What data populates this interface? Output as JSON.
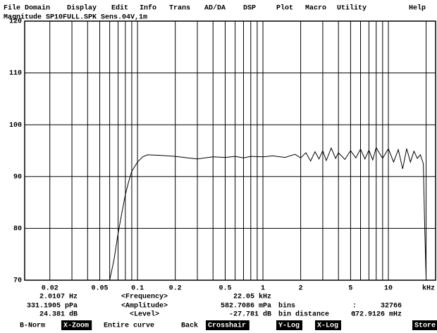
{
  "menu": [
    "File",
    "Domain",
    "Display",
    "Edit",
    "Info",
    "Trans",
    "AD/DA",
    "DSP",
    "Plot",
    "Macro",
    "Utility",
    "Help"
  ],
  "chart_data": {
    "type": "line",
    "title": "Magnitude SP10FULL.SPK Sens.04V,1m",
    "x_unit": "kHz",
    "color": "#000000",
    "grid": true,
    "xscale": "log",
    "xlim": [
      0.0126,
      23.8
    ],
    "xticks": [
      0.02,
      0.05,
      0.1,
      0.2,
      0.5,
      1,
      2,
      5,
      10
    ],
    "minor_xticks": [
      0.03,
      0.04,
      0.06,
      0.07,
      0.08,
      0.09,
      0.3,
      0.4,
      0.6,
      0.7,
      0.8,
      0.9,
      3,
      4,
      6,
      7,
      8,
      9,
      20
    ],
    "ylim": [
      70,
      120
    ],
    "yticks": [
      70,
      80,
      90,
      100,
      110,
      120
    ],
    "x": [
      0.06,
      0.065,
      0.07,
      0.075,
      0.08,
      0.085,
      0.09,
      0.1,
      0.11,
      0.12,
      0.15,
      0.2,
      0.25,
      0.3,
      0.4,
      0.5,
      0.6,
      0.7,
      0.8,
      1,
      1.2,
      1.5,
      1.8,
      2,
      2.2,
      2.4,
      2.6,
      2.8,
      3,
      3.2,
      3.5,
      3.8,
      4,
      4.5,
      5,
      5.5,
      6,
      6.5,
      7,
      7.5,
      8,
      9,
      10,
      11,
      12,
      13,
      14,
      15,
      16,
      17,
      18,
      19,
      19.5,
      20
    ],
    "values": [
      70,
      74,
      79,
      83,
      86.5,
      89,
      91,
      92.8,
      93.8,
      94.2,
      94.1,
      93.9,
      93.6,
      93.4,
      93.8,
      93.7,
      93.9,
      93.6,
      93.9,
      93.8,
      94.0,
      93.7,
      94.3,
      93.6,
      94.6,
      93.0,
      94.8,
      93.4,
      95.0,
      93.1,
      95.5,
      93.5,
      94.6,
      93.3,
      95.0,
      93.6,
      95.3,
      93.4,
      95.1,
      93.2,
      95.6,
      93.5,
      95.4,
      92.8,
      95.2,
      91.5,
      95.4,
      92.8,
      94.9,
      93.5,
      94.2,
      92.5,
      80,
      70
    ]
  },
  "status": {
    "frequency": {
      "left": "2.0107 Hz",
      "label": "<Frequency>",
      "right": "22.05 kHz"
    },
    "amplitude": {
      "left": "331.1905 pPa",
      "label": "<Amplitude>",
      "right": "582.7086 mPa",
      "info": "bins",
      "sep": ":",
      "info_value": "32766"
    },
    "level": {
      "left": "24.381 dB",
      "label": "<Level>",
      "right": "-27.781 dB",
      "info": "bin distance",
      "sep": ":",
      "info_value": "672.9126 mHz"
    }
  },
  "buttons": [
    {
      "label": "B-Norm",
      "inverted": false
    },
    {
      "label": "X-Zoom",
      "inverted": true
    },
    {
      "label": "Entire curve",
      "inverted": false
    },
    {
      "label": "Back",
      "inverted": false
    },
    {
      "label": "Crosshair",
      "inverted": true
    },
    {
      "label": "Y-Log",
      "inverted": true
    },
    {
      "label": "X-Log",
      "inverted": true
    },
    {
      "label": "Store",
      "inverted": true
    }
  ]
}
